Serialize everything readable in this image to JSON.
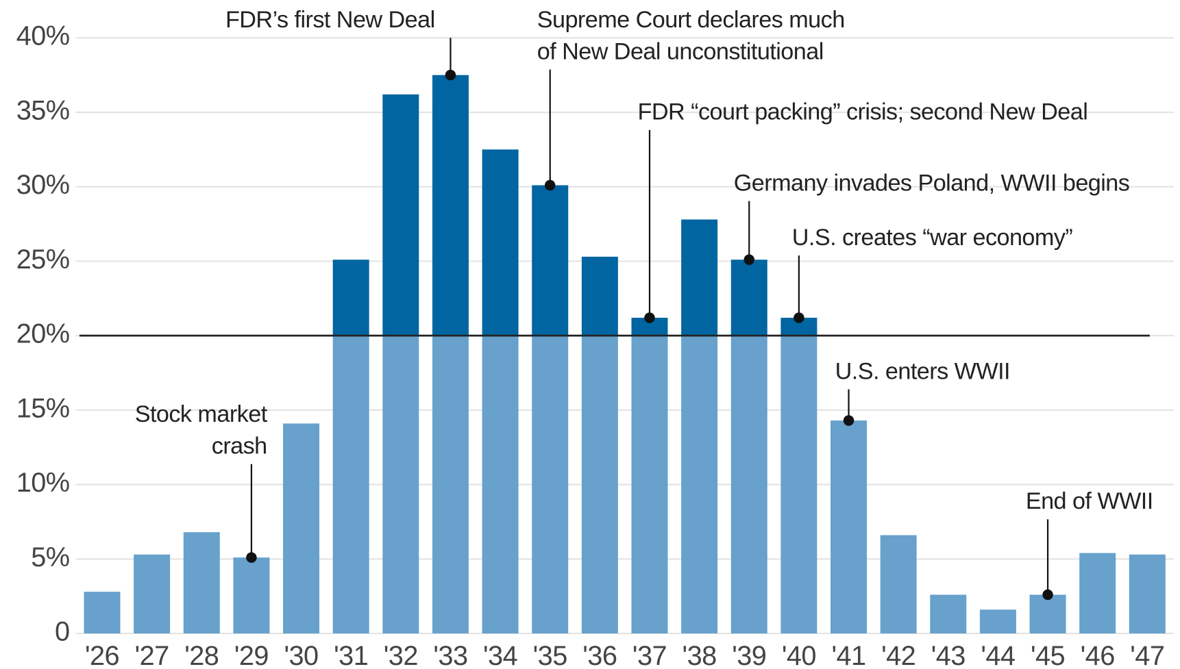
{
  "chart_data": {
    "type": "bar",
    "categories": [
      "'26",
      "'27",
      "'28",
      "'29",
      "'30",
      "'31",
      "'32",
      "'33",
      "'34",
      "'35",
      "'36",
      "'37",
      "'38",
      "'39",
      "'40",
      "'41",
      "'42",
      "'43",
      "'44",
      "'45",
      "'46",
      "'47"
    ],
    "values": [
      2.8,
      5.3,
      6.8,
      5.1,
      14.1,
      25.1,
      36.2,
      37.5,
      32.5,
      30.1,
      25.3,
      21.2,
      27.8,
      25.1,
      21.2,
      14.3,
      6.6,
      2.6,
      1.6,
      2.6,
      5.4,
      5.3
    ],
    "ylim": [
      0,
      40
    ],
    "yticks": [
      0,
      {
        "value": 5,
        "label": "5%"
      },
      {
        "value": 10,
        "label": "10%"
      },
      {
        "value": 15,
        "label": "15%"
      },
      {
        "value": 20,
        "label": "20%"
      },
      {
        "value": 25,
        "label": "25%"
      },
      {
        "value": 30,
        "label": "30%"
      },
      {
        "value": 35,
        "label": "35%"
      },
      {
        "value": 40,
        "label": "40%"
      }
    ],
    "grid": true,
    "threshold": 20,
    "colors": {
      "below": "#67a1cc",
      "above": "#0065a1"
    },
    "annotations": [
      {
        "category": "'29",
        "lines": [
          "Stock market",
          "crash"
        ]
      },
      {
        "category": "'33",
        "lines": [
          "FDR’s first New Deal"
        ]
      },
      {
        "category": "'35",
        "lines": [
          "Supreme Court declares much",
          "of New Deal unconstitutional"
        ]
      },
      {
        "category": "'37",
        "lines": [
          "FDR “court packing” crisis; second New Deal"
        ]
      },
      {
        "category": "'39",
        "lines": [
          "Germany invades Poland, WWII begins"
        ]
      },
      {
        "category": "'40",
        "lines": [
          "U.S. creates “war economy”"
        ]
      },
      {
        "category": "'41",
        "lines": [
          "U.S. enters WWII"
        ]
      },
      {
        "category": "'45",
        "lines": [
          "End of WWII"
        ]
      }
    ]
  }
}
